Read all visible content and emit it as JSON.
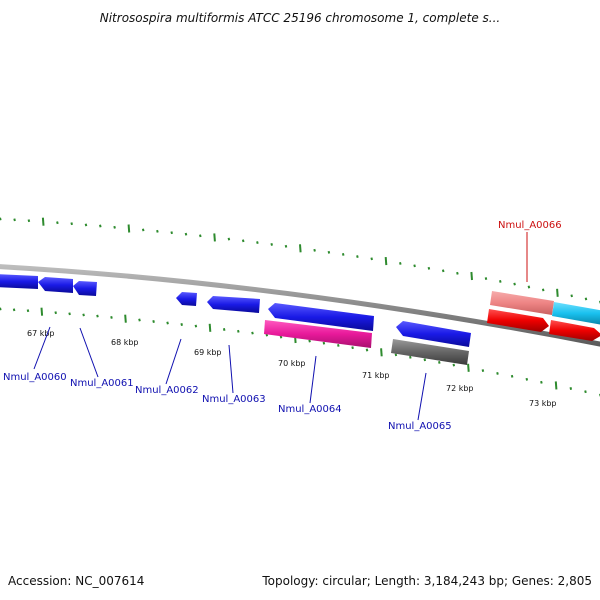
{
  "title": "Nitrosospira multiformis ATCC 25196 chromosome 1, complete s...",
  "footer": {
    "accession": "Accession: NC_007614",
    "summary": "Topology: circular; Length: 3,184,243 bp; Genes: 2,805"
  },
  "colors": {
    "blue": "#1a1ae6",
    "magenta": "#e8199a",
    "gray": "#666666",
    "salmon": "#ee8484",
    "red": "#ee0000",
    "cyan": "#19c0ee",
    "tick": "#2e8b2e",
    "label_blue": "#1010b0",
    "label_red": "#cc1010",
    "backbone": "#8a8a8a"
  },
  "scale_labels": [
    "67 kbp",
    "68 kbp",
    "69 kbp",
    "70 kbp",
    "71 kbp",
    "72 kbp",
    "73 kbp"
  ],
  "genes": [
    {
      "label": "Nmul_A0060",
      "strand": "reverse",
      "color": "blue"
    },
    {
      "label": "Nmul_A0061",
      "strand": "reverse",
      "color": "blue"
    },
    {
      "label": "Nmul_A0062",
      "strand": "reverse",
      "color": "blue"
    },
    {
      "label": "Nmul_A0063",
      "strand": "reverse",
      "color": "blue"
    },
    {
      "label": "Nmul_A0064",
      "strand": "reverse",
      "color": "blue"
    },
    {
      "label": "Nmul_A0065",
      "strand": "reverse",
      "color": "blue"
    },
    {
      "label": "Nmul_A0066",
      "strand": "forward",
      "color": "red"
    }
  ]
}
